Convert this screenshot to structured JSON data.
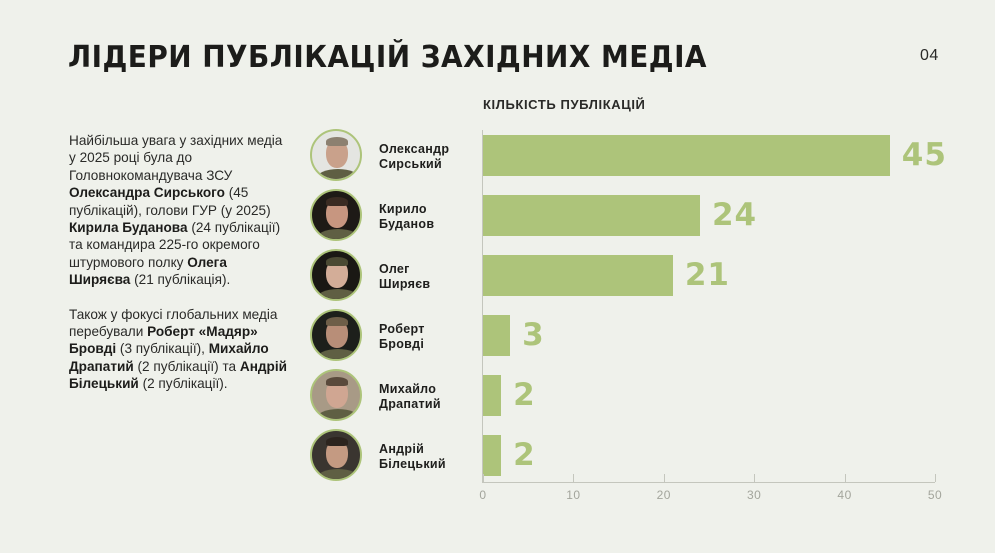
{
  "header": {
    "title": "ЛІДЕРИ ПУБЛІКАЦІЙ ЗАХІДНИХ МЕДІА",
    "page_number": "04"
  },
  "description": {
    "paragraph1": [
      {
        "text": "Найбільша увага у західних медіа у 2025 році була до Головнокомандувача ЗСУ ",
        "bold": false
      },
      {
        "text": "Олександра Сирського",
        "bold": true
      },
      {
        "text": " (45 публікацій), голови ГУР (у 2025) ",
        "bold": false
      },
      {
        "text": "Кирила Буданова",
        "bold": true
      },
      {
        "text": " (24 публікації) та командира 225-го окремого штурмового полку ",
        "bold": false
      },
      {
        "text": "Олега Ширяєва",
        "bold": true
      },
      {
        "text": " (21 публікація).",
        "bold": false
      }
    ],
    "paragraph2": [
      {
        "text": "Також у фокусі глобальних медіа перебували ",
        "bold": false
      },
      {
        "text": "Роберт «Мадяр» Бровді",
        "bold": true
      },
      {
        "text": " (3 публікації), ",
        "bold": false
      },
      {
        "text": "Михайло Драпатий",
        "bold": true
      },
      {
        "text": " (2 публікації) та ",
        "bold": false
      },
      {
        "text": "Андрій Білецький",
        "bold": true
      },
      {
        "text": " (2 публікації).",
        "bold": false
      }
    ]
  },
  "colors": {
    "background": "#eff1eb",
    "bar": "#adc47a",
    "value_label": "#adc47a",
    "axis": "#c4c6bd",
    "tick_label": "#a3a59c",
    "text": "#1e1e1c"
  },
  "chart_data": {
    "type": "bar",
    "orientation": "horizontal",
    "title": "ЛІДЕРИ ПУБЛІКАЦІЙ ЗАХІДНИХ МЕДІА",
    "xlabel": "КІЛЬКІСТЬ ПУБЛІКАЦІЙ",
    "ylabel": "",
    "categories": [
      "Олександр Сирський",
      "Кирило Буданов",
      "Олег Ширяєв",
      "Роберт Бровді",
      "Михайло Драпатий",
      "Андрій Білецький"
    ],
    "category_lines": [
      [
        "Олександр",
        "Сирський"
      ],
      [
        "Кирило",
        "Буданов"
      ],
      [
        "Олег",
        "Ширяєв"
      ],
      [
        "Роберт",
        "Бровді"
      ],
      [
        "Михайло",
        "Драпатий"
      ],
      [
        "Андрій",
        "Білецький"
      ]
    ],
    "values": [
      45,
      24,
      21,
      3,
      2,
      2
    ],
    "value_labels": [
      "45",
      "24",
      "21",
      "3",
      "2",
      "2"
    ],
    "xlim": [
      0,
      50
    ],
    "x_ticks": [
      0,
      10,
      20,
      30,
      40,
      50
    ],
    "x_tick_labels": [
      "0",
      "10",
      "20",
      "30",
      "40",
      "50"
    ],
    "grid": false,
    "legend": null,
    "avatars": [
      {
        "bg": "#e4e5e1",
        "skin": "#c9a18b",
        "hair": "#8c8070"
      },
      {
        "bg": "#1e1a16",
        "skin": "#c79680",
        "hair": "#3a2b22"
      },
      {
        "bg": "#1a1814",
        "skin": "#d3ad98",
        "hair": "#4b4a33"
      },
      {
        "bg": "#1d1f1b",
        "skin": "#b88e78",
        "hair": "#6e5e48"
      },
      {
        "bg": "#a89a86",
        "skin": "#d0a692",
        "hair": "#5a4a3c"
      },
      {
        "bg": "#3a3530",
        "skin": "#c49a82",
        "hair": "#2c241e"
      }
    ]
  }
}
